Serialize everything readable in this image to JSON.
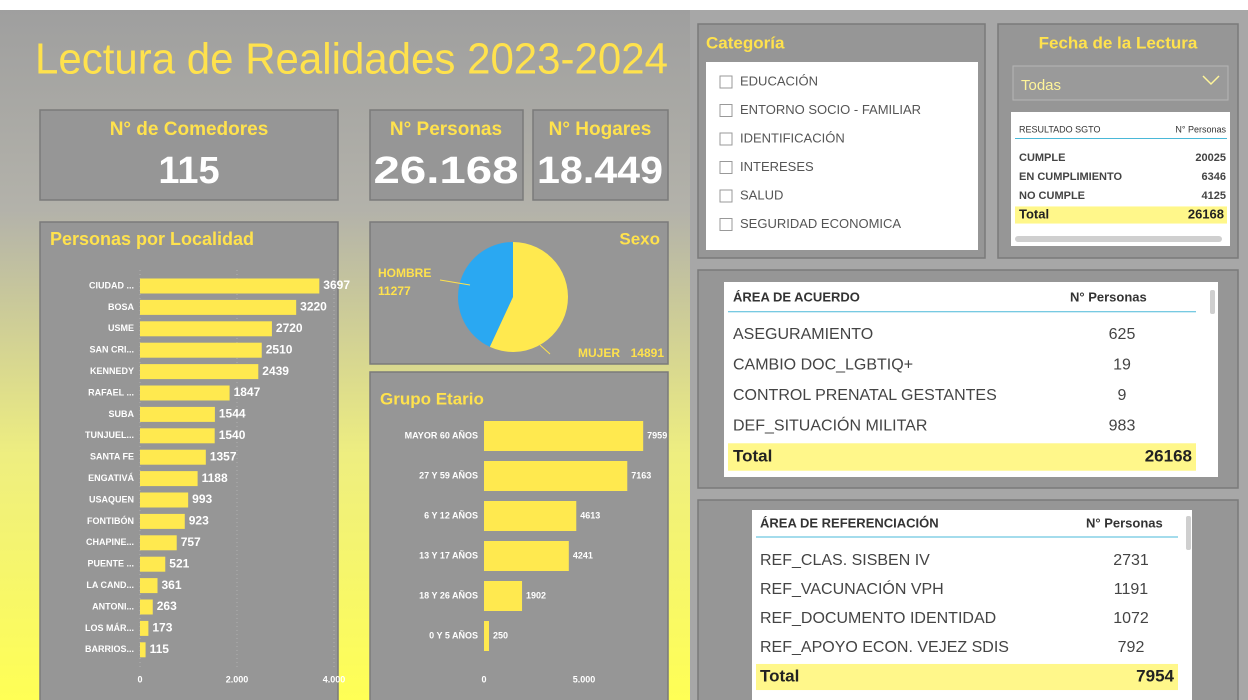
{
  "title": "Lectura de Realidades 2023-2024",
  "cards": [
    {
      "label": "N° de Comedores",
      "value": "115"
    },
    {
      "label": "N° Personas",
      "value": "26.168"
    },
    {
      "label": "N° Hogares",
      "value": "18.449"
    }
  ],
  "chart_data": [
    {
      "type": "hbar",
      "title": "Personas por Localidad",
      "color": "#ffe94f",
      "grid": true,
      "categories": [
        "CIUDAD ...",
        "BOSA",
        "USME",
        "SAN CRI...",
        "KENNEDY",
        "RAFAEL ...",
        "SUBA",
        "TUNJUEL...",
        "SANTA FE",
        "ENGATIVÁ",
        "USAQUEN",
        "FONTIBÓN",
        "CHAPINE...",
        "PUENTE ...",
        "LA CAND...",
        "ANTONI...",
        "LOS MÁR...",
        "BARRIOS..."
      ],
      "values": [
        3697,
        3220,
        2720,
        2510,
        2439,
        1847,
        1544,
        1540,
        1357,
        1188,
        993,
        923,
        757,
        521,
        361,
        263,
        173,
        115
      ],
      "xlim": [
        0,
        4000
      ],
      "xticks": [
        0,
        {
          "value": 2000,
          "label": "2.000"
        },
        {
          "value": 4000,
          "label": "4.000"
        }
      ]
    },
    {
      "type": "pie",
      "title": "Sexo",
      "categories": [
        "HOMBRE",
        "MUJER"
      ],
      "values": [
        11277,
        14891
      ],
      "colors": [
        "#2aa8f2",
        "#ffe94f"
      ]
    },
    {
      "type": "hbar",
      "title": "Grupo Etario",
      "color": "#ffe94f",
      "grid": false,
      "categories": [
        "MAYOR 60 AÑOS",
        "27 Y 59 AÑOS",
        "6 Y 12 AÑOS",
        "13 Y 17 AÑOS",
        "18 Y 26 AÑOS",
        "0 Y 5 AÑOS"
      ],
      "values": [
        7959,
        7163,
        4613,
        4241,
        1902,
        250
      ],
      "xlim": [
        0,
        8000
      ],
      "xticks": [
        0,
        {
          "value": 5000,
          "label": "5.000"
        }
      ]
    }
  ],
  "categoria": {
    "title": "Categoría",
    "items": [
      "EDUCACIÓN",
      "ENTORNO SOCIO - FAMILIAR",
      "IDENTIFICACIÓN",
      "INTERESES",
      "SALUD",
      "SEGURIDAD ECONOMICA"
    ]
  },
  "fecha": {
    "title": "Fecha de la Lectura",
    "selected": "Todas"
  },
  "tables": [
    {
      "columns": [
        "RESULTADO SGTO",
        "N° Personas"
      ],
      "rows": [
        [
          "CUMPLE",
          20025
        ],
        [
          "EN CUMPLIMIENTO",
          6346
        ],
        [
          "NO CUMPLE",
          4125
        ]
      ],
      "total": [
        "Total",
        26168
      ]
    },
    {
      "columns": [
        "ÁREA DE ACUERDO",
        "N° Personas"
      ],
      "rows": [
        [
          "ASEGURAMIENTO",
          625
        ],
        [
          "CAMBIO DOC_LGBTIQ+",
          19
        ],
        [
          "CONTROL PRENATAL GESTANTES",
          9
        ],
        [
          "DEF_SITUACIÓN MILITAR",
          983
        ]
      ],
      "total": [
        "Total",
        26168
      ]
    },
    {
      "columns": [
        "ÁREA DE REFERENCIACIÓN",
        "N° Personas"
      ],
      "rows": [
        [
          "REF_CLAS. SISBEN IV",
          2731
        ],
        [
          "REF_VACUNACIÓN VPH",
          1191
        ],
        [
          "REF_DOCUMENTO IDENTIDAD",
          1072
        ],
        [
          "REF_APOYO ECON. VEJEZ SDIS",
          792
        ]
      ],
      "total": [
        "Total",
        7954
      ]
    }
  ]
}
